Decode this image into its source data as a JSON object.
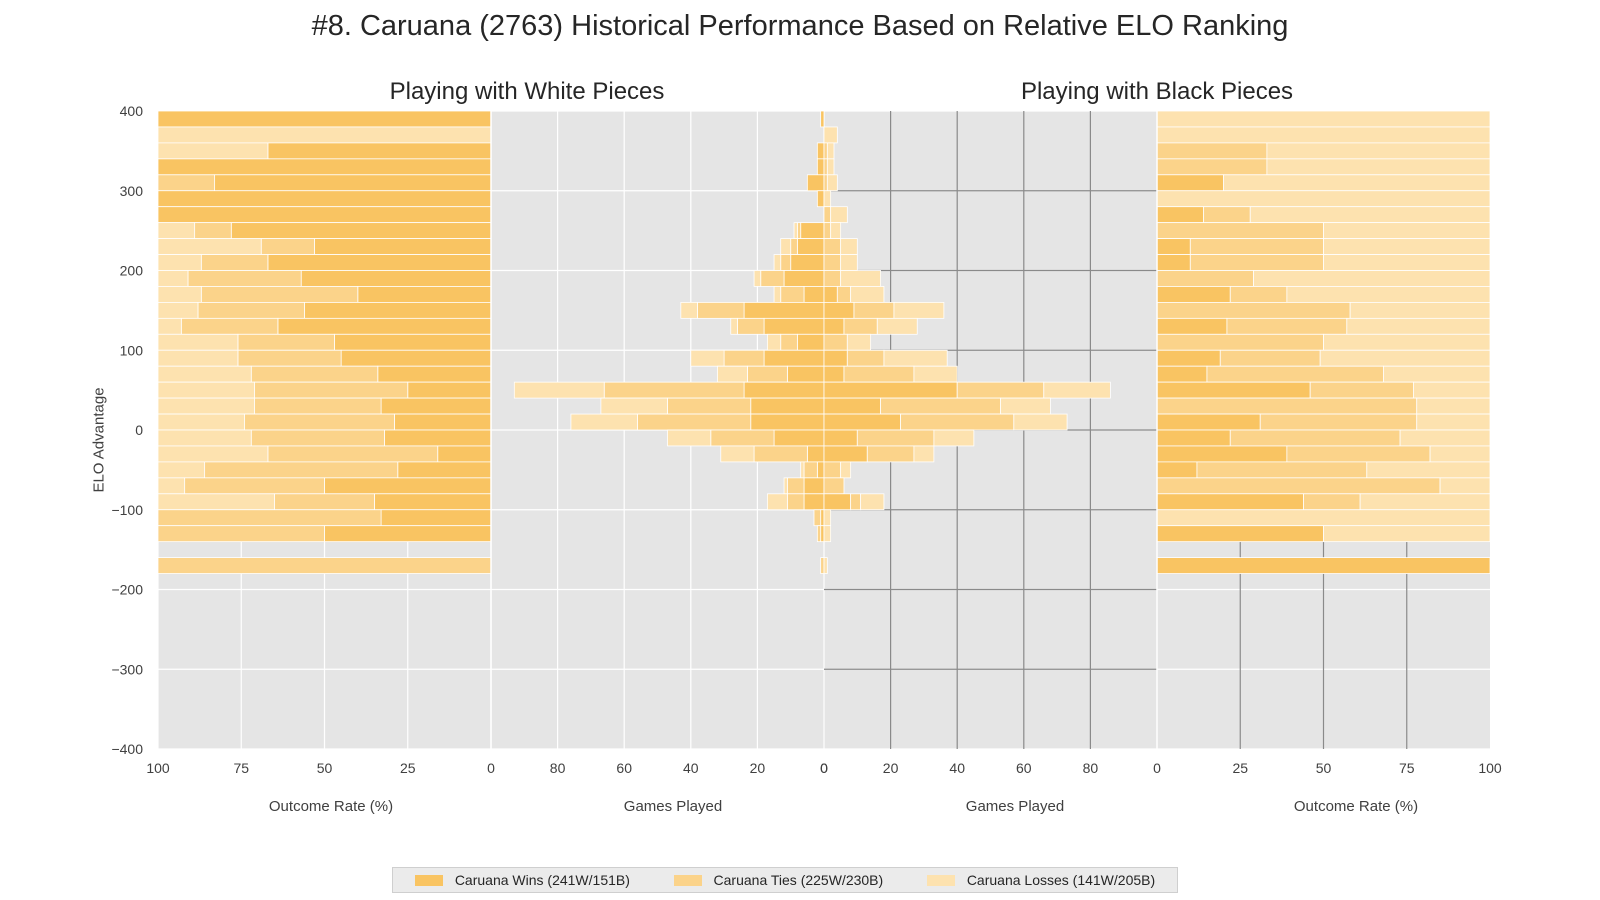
{
  "title": "#8. Caruana (2763) Historical Performance Based on Relative ELO Ranking",
  "panels": {
    "white_title": "Playing with White Pieces",
    "black_title": "Playing with Black Pieces"
  },
  "axis_labels": {
    "outcome_rate": "Outcome Rate (%)",
    "games_played": "Games Played",
    "elo": "ELO Advantage"
  },
  "colors": {
    "wins": "#f9c462",
    "ties": "#fbd38a",
    "losses": "#fde2af",
    "plot_bg": "#e5e5e5",
    "grid": "#ffffff"
  },
  "legend": {
    "wins": "Caruana Wins (241W/151B)",
    "ties": "Caruana Ties (225W/230B)",
    "losses": "Caruana Losses (141W/205B)"
  },
  "chart_data": {
    "type": "bar",
    "orientation": "horizontal",
    "y_axis": {
      "label": "ELO Advantage",
      "lim": [
        -400,
        400
      ],
      "ticks": [
        400,
        300,
        200,
        100,
        0,
        -100,
        -200,
        -300,
        -400
      ],
      "tick_labels": [
        "400",
        "300",
        "200",
        "100",
        "0",
        "−100",
        "−200",
        "−300",
        "−400"
      ],
      "bin_width": 20
    },
    "rate_axis_ticks": [
      0,
      25,
      50,
      75,
      100
    ],
    "games_axis_ticks": [
      0,
      20,
      40,
      60,
      80
    ],
    "games_axis_lim": 100,
    "series_order": [
      "wins",
      "ties",
      "losses"
    ],
    "white": {
      "rates": [
        {
          "y": 390,
          "wins": 100,
          "ties": 0,
          "losses": 0
        },
        {
          "y": 370,
          "wins": 0,
          "ties": 0,
          "losses": 100
        },
        {
          "y": 350,
          "wins": 67,
          "ties": 0,
          "losses": 33
        },
        {
          "y": 330,
          "wins": 100,
          "ties": 0,
          "losses": 0
        },
        {
          "y": 310,
          "wins": 83,
          "ties": 17,
          "losses": 0
        },
        {
          "y": 290,
          "wins": 100,
          "ties": 0,
          "losses": 0
        },
        {
          "y": 270,
          "wins": 100,
          "ties": 0,
          "losses": 0
        },
        {
          "y": 250,
          "wins": 78,
          "ties": 11,
          "losses": 11
        },
        {
          "y": 230,
          "wins": 53,
          "ties": 16,
          "losses": 31
        },
        {
          "y": 210,
          "wins": 67,
          "ties": 20,
          "losses": 13
        },
        {
          "y": 190,
          "wins": 57,
          "ties": 34,
          "losses": 9
        },
        {
          "y": 170,
          "wins": 40,
          "ties": 47,
          "losses": 13
        },
        {
          "y": 150,
          "wins": 56,
          "ties": 32,
          "losses": 12
        },
        {
          "y": 130,
          "wins": 64,
          "ties": 29,
          "losses": 7
        },
        {
          "y": 110,
          "wins": 47,
          "ties": 29,
          "losses": 24
        },
        {
          "y": 90,
          "wins": 45,
          "ties": 31,
          "losses": 24
        },
        {
          "y": 70,
          "wins": 34,
          "ties": 38,
          "losses": 28
        },
        {
          "y": 50,
          "wins": 25,
          "ties": 46,
          "losses": 29
        },
        {
          "y": 30,
          "wins": 33,
          "ties": 38,
          "losses": 29
        },
        {
          "y": 10,
          "wins": 29,
          "ties": 45,
          "losses": 26
        },
        {
          "y": -10,
          "wins": 32,
          "ties": 40,
          "losses": 28
        },
        {
          "y": -30,
          "wins": 16,
          "ties": 51,
          "losses": 33
        },
        {
          "y": -50,
          "wins": 28,
          "ties": 58,
          "losses": 14
        },
        {
          "y": -70,
          "wins": 50,
          "ties": 42,
          "losses": 8
        },
        {
          "y": -90,
          "wins": 35,
          "ties": 30,
          "losses": 35
        },
        {
          "y": -110,
          "wins": 33,
          "ties": 67,
          "losses": 0
        },
        {
          "y": -130,
          "wins": 50,
          "ties": 50,
          "losses": 0
        },
        {
          "y": -170,
          "wins": 0,
          "ties": 100,
          "losses": 0
        }
      ],
      "counts": [
        {
          "y": 390,
          "wins": 1,
          "ties": 0,
          "losses": 0
        },
        {
          "y": 370,
          "wins": 0,
          "ties": 0,
          "losses": 0
        },
        {
          "y": 350,
          "wins": 2,
          "ties": 0,
          "losses": 0
        },
        {
          "y": 330,
          "wins": 2,
          "ties": 0,
          "losses": 0
        },
        {
          "y": 310,
          "wins": 5,
          "ties": 0,
          "losses": 0
        },
        {
          "y": 290,
          "wins": 2,
          "ties": 0,
          "losses": 0
        },
        {
          "y": 270,
          "wins": 0,
          "ties": 0,
          "losses": 0
        },
        {
          "y": 250,
          "wins": 7,
          "ties": 1,
          "losses": 1
        },
        {
          "y": 230,
          "wins": 8,
          "ties": 2,
          "losses": 3
        },
        {
          "y": 210,
          "wins": 10,
          "ties": 3,
          "losses": 2
        },
        {
          "y": 190,
          "wins": 12,
          "ties": 7,
          "losses": 2
        },
        {
          "y": 170,
          "wins": 6,
          "ties": 7,
          "losses": 2
        },
        {
          "y": 150,
          "wins": 24,
          "ties": 14,
          "losses": 5
        },
        {
          "y": 130,
          "wins": 18,
          "ties": 8,
          "losses": 2
        },
        {
          "y": 110,
          "wins": 8,
          "ties": 5,
          "losses": 4
        },
        {
          "y": 90,
          "wins": 18,
          "ties": 12,
          "losses": 10
        },
        {
          "y": 70,
          "wins": 11,
          "ties": 12,
          "losses": 9
        },
        {
          "y": 50,
          "wins": 24,
          "ties": 42,
          "losses": 27
        },
        {
          "y": 30,
          "wins": 22,
          "ties": 25,
          "losses": 20
        },
        {
          "y": 10,
          "wins": 22,
          "ties": 34,
          "losses": 20
        },
        {
          "y": -10,
          "wins": 15,
          "ties": 19,
          "losses": 13
        },
        {
          "y": -30,
          "wins": 5,
          "ties": 16,
          "losses": 10
        },
        {
          "y": -50,
          "wins": 2,
          "ties": 4,
          "losses": 1
        },
        {
          "y": -70,
          "wins": 6,
          "ties": 5,
          "losses": 1
        },
        {
          "y": -90,
          "wins": 6,
          "ties": 5,
          "losses": 6
        },
        {
          "y": -110,
          "wins": 1,
          "ties": 2,
          "losses": 0
        },
        {
          "y": -130,
          "wins": 1,
          "ties": 1,
          "losses": 0
        },
        {
          "y": -170,
          "wins": 0,
          "ties": 1,
          "losses": 0
        }
      ]
    },
    "black": {
      "rates": [
        {
          "y": 390,
          "wins": 0,
          "ties": 0,
          "losses": 100
        },
        {
          "y": 370,
          "wins": 0,
          "ties": 0,
          "losses": 100
        },
        {
          "y": 350,
          "wins": 0,
          "ties": 33,
          "losses": 67
        },
        {
          "y": 330,
          "wins": 0,
          "ties": 33,
          "losses": 67
        },
        {
          "y": 310,
          "wins": 20,
          "ties": 0,
          "losses": 80
        },
        {
          "y": 290,
          "wins": 0,
          "ties": 0,
          "losses": 100
        },
        {
          "y": 270,
          "wins": 14,
          "ties": 14,
          "losses": 72
        },
        {
          "y": 250,
          "wins": 0,
          "ties": 50,
          "losses": 50
        },
        {
          "y": 230,
          "wins": 10,
          "ties": 40,
          "losses": 50
        },
        {
          "y": 210,
          "wins": 10,
          "ties": 40,
          "losses": 50
        },
        {
          "y": 190,
          "wins": 0,
          "ties": 29,
          "losses": 71
        },
        {
          "y": 170,
          "wins": 22,
          "ties": 17,
          "losses": 61
        },
        {
          "y": 150,
          "wins": 0,
          "ties": 58,
          "losses": 42
        },
        {
          "y": 130,
          "wins": 21,
          "ties": 36,
          "losses": 43
        },
        {
          "y": 110,
          "wins": 0,
          "ties": 50,
          "losses": 50
        },
        {
          "y": 90,
          "wins": 19,
          "ties": 30,
          "losses": 51
        },
        {
          "y": 70,
          "wins": 15,
          "ties": 53,
          "losses": 32
        },
        {
          "y": 50,
          "wins": 46,
          "ties": 31,
          "losses": 23
        },
        {
          "y": 30,
          "wins": 0,
          "ties": 78,
          "losses": 22
        },
        {
          "y": 10,
          "wins": 31,
          "ties": 47,
          "losses": 22
        },
        {
          "y": -10,
          "wins": 22,
          "ties": 51,
          "losses": 27
        },
        {
          "y": -30,
          "wins": 39,
          "ties": 43,
          "losses": 18
        },
        {
          "y": -50,
          "wins": 12,
          "ties": 51,
          "losses": 37
        },
        {
          "y": -70,
          "wins": 0,
          "ties": 85,
          "losses": 15
        },
        {
          "y": -90,
          "wins": 44,
          "ties": 17,
          "losses": 39
        },
        {
          "y": -110,
          "wins": 0,
          "ties": 0,
          "losses": 100
        },
        {
          "y": -130,
          "wins": 50,
          "ties": 0,
          "losses": 50
        },
        {
          "y": -170,
          "wins": 100,
          "ties": 0,
          "losses": 0
        }
      ],
      "counts": [
        {
          "y": 390,
          "wins": 0,
          "ties": 0,
          "losses": 0
        },
        {
          "y": 370,
          "wins": 0,
          "ties": 0,
          "losses": 4
        },
        {
          "y": 350,
          "wins": 0,
          "ties": 1,
          "losses": 2
        },
        {
          "y": 330,
          "wins": 0,
          "ties": 1,
          "losses": 2
        },
        {
          "y": 310,
          "wins": 0,
          "ties": 1,
          "losses": 3
        },
        {
          "y": 290,
          "wins": 0,
          "ties": 0,
          "losses": 2
        },
        {
          "y": 270,
          "wins": 0,
          "ties": 2,
          "losses": 5
        },
        {
          "y": 250,
          "wins": 0,
          "ties": 2,
          "losses": 3
        },
        {
          "y": 230,
          "wins": 0,
          "ties": 5,
          "losses": 5
        },
        {
          "y": 210,
          "wins": 0,
          "ties": 5,
          "losses": 5
        },
        {
          "y": 190,
          "wins": 0,
          "ties": 5,
          "losses": 12
        },
        {
          "y": 170,
          "wins": 4,
          "ties": 4,
          "losses": 10
        },
        {
          "y": 150,
          "wins": 9,
          "ties": 12,
          "losses": 15
        },
        {
          "y": 130,
          "wins": 6,
          "ties": 10,
          "losses": 12
        },
        {
          "y": 110,
          "wins": 0,
          "ties": 7,
          "losses": 7
        },
        {
          "y": 90,
          "wins": 7,
          "ties": 11,
          "losses": 19
        },
        {
          "y": 70,
          "wins": 6,
          "ties": 21,
          "losses": 13
        },
        {
          "y": 50,
          "wins": 40,
          "ties": 26,
          "losses": 20
        },
        {
          "y": 30,
          "wins": 17,
          "ties": 36,
          "losses": 15
        },
        {
          "y": 10,
          "wins": 23,
          "ties": 34,
          "losses": 16
        },
        {
          "y": -10,
          "wins": 10,
          "ties": 23,
          "losses": 12
        },
        {
          "y": -30,
          "wins": 13,
          "ties": 14,
          "losses": 6
        },
        {
          "y": -50,
          "wins": 0,
          "ties": 5,
          "losses": 3
        },
        {
          "y": -70,
          "wins": 0,
          "ties": 6,
          "losses": 0
        },
        {
          "y": -90,
          "wins": 8,
          "ties": 3,
          "losses": 7
        },
        {
          "y": -110,
          "wins": 0,
          "ties": 0,
          "losses": 2
        },
        {
          "y": -130,
          "wins": 0,
          "ties": 0,
          "losses": 2
        },
        {
          "y": -170,
          "wins": 0,
          "ties": 0,
          "losses": 1
        }
      ]
    }
  }
}
